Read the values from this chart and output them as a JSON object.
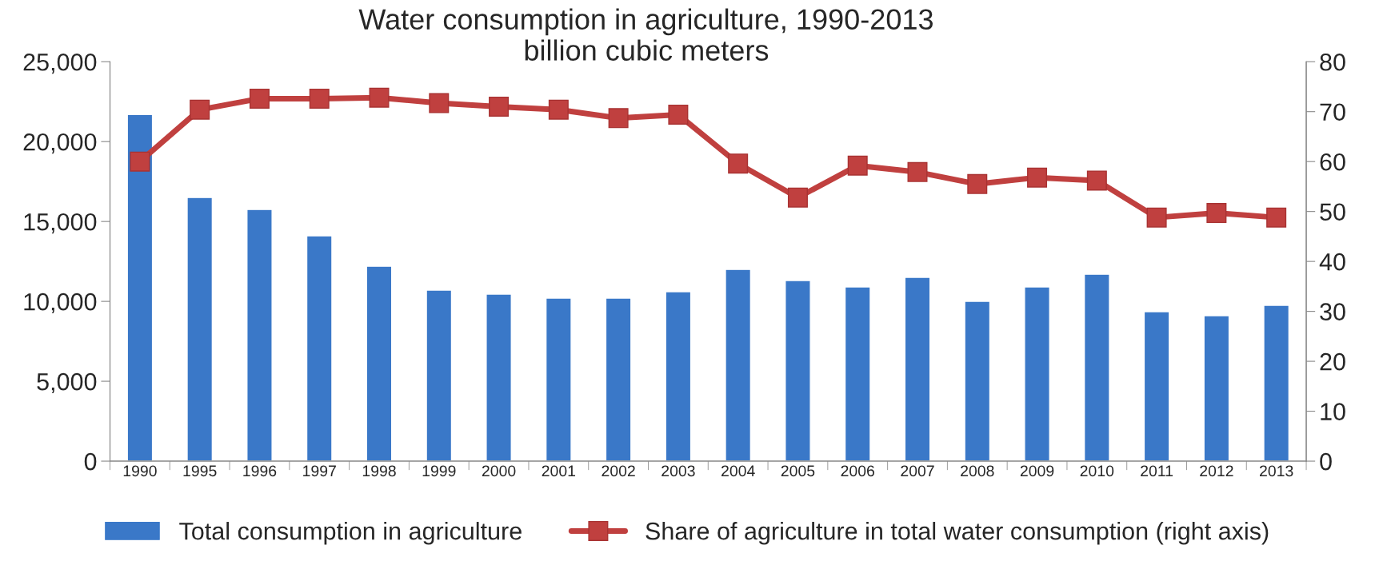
{
  "chart_data": {
    "type": "bar",
    "title": "Water consumption in agriculture, 1990-2013\nbillion cubic meters",
    "categories": [
      "1990",
      "1995",
      "1996",
      "1997",
      "1998",
      "1999",
      "2000",
      "2001",
      "2002",
      "2003",
      "2004",
      "2005",
      "2006",
      "2007",
      "2008",
      "2009",
      "2010",
      "2011",
      "2012",
      "2013"
    ],
    "series": [
      {
        "name": "Total consumption in agriculture",
        "color": "#3a78c8",
        "values": [
          21700,
          16500,
          15750,
          14100,
          12200,
          10700,
          10450,
          10200,
          10200,
          10600,
          12000,
          11300,
          10900,
          11500,
          10000,
          10900,
          11700,
          9350,
          9100,
          9750
        ]
      },
      {
        "name": "Share of agriculture in total water consumption (right axis)",
        "type": "line",
        "axis": "y2",
        "color": "#c0403f",
        "marker": "square",
        "values": [
          60.0,
          70.4,
          72.6,
          72.6,
          72.8,
          71.7,
          71.0,
          70.4,
          68.7,
          69.4,
          59.6,
          52.8,
          59.2,
          57.9,
          55.5,
          56.8,
          56.2,
          48.8,
          49.7,
          48.8
        ]
      }
    ],
    "ylim": [
      0,
      25000
    ],
    "yticks": [
      {
        "value": 0,
        "label": "0"
      },
      {
        "value": 5000,
        "label": "5,000"
      },
      {
        "value": 10000,
        "label": "10,000"
      },
      {
        "value": 15000,
        "label": "15,000"
      },
      {
        "value": 20000,
        "label": "20,000"
      },
      {
        "value": 25000,
        "label": "25,000"
      }
    ],
    "y2lim": [
      0,
      80
    ],
    "y2ticks": [
      0,
      10,
      20,
      30,
      40,
      50,
      60,
      70,
      80
    ],
    "grid": false,
    "legend": "bottom"
  }
}
